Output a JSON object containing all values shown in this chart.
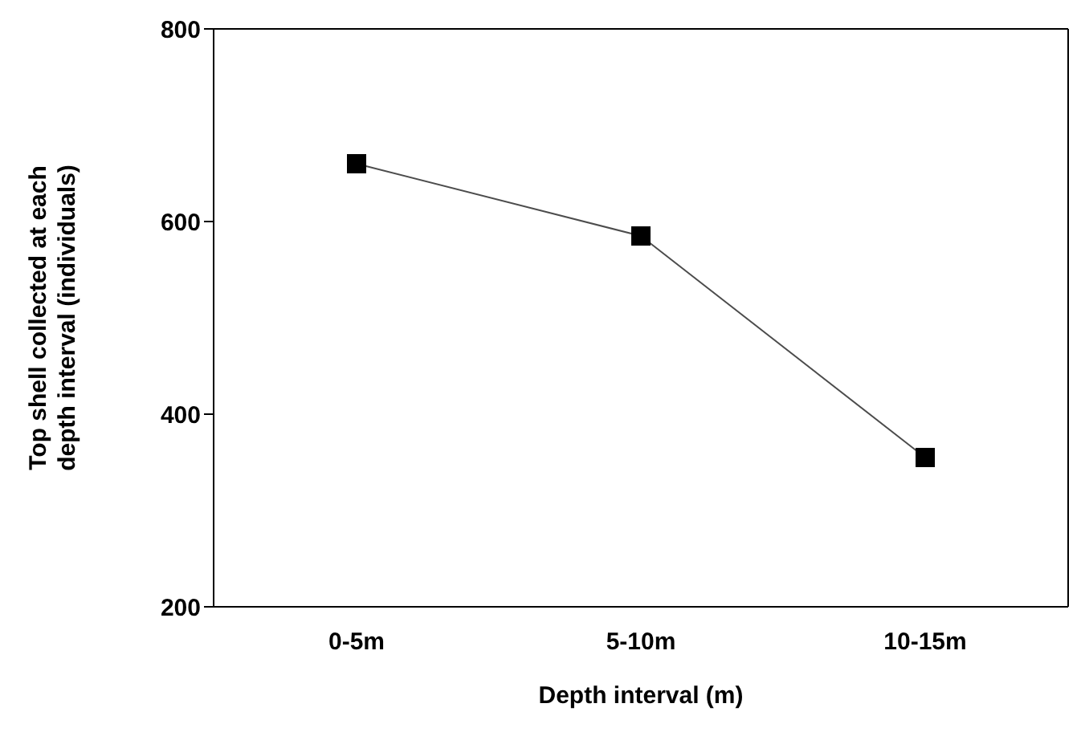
{
  "chart_data": {
    "type": "line",
    "xlabel": "Depth interval (m)",
    "ylabel": "Top shell collected at each depth interval (individuals)",
    "categories": [
      "0-5m",
      "5-10m",
      "10-15m"
    ],
    "series": [
      {
        "color": "#000000",
        "values": [
          660,
          585,
          355
        ]
      }
    ],
    "ylim": [
      200,
      800
    ],
    "yticks": [
      200,
      400,
      600,
      800
    ],
    "grid": false,
    "legend": false,
    "marker": "square",
    "line_style": "solid"
  }
}
